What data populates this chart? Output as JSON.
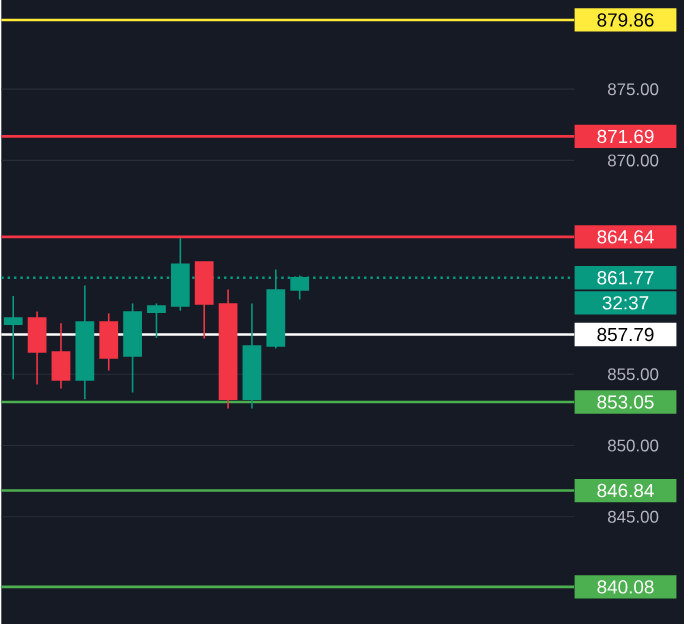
{
  "chart_data": {
    "type": "candlestick",
    "categories": [
      null,
      null,
      null,
      null,
      null,
      null,
      null,
      null,
      null,
      null,
      null,
      null,
      null,
      null,
      null,
      null,
      null,
      null,
      null,
      null,
      null,
      null,
      null,
      null
    ],
    "ohlc": [
      [
        858.52,
        860.49,
        854.65,
        858.95
      ],
      [
        858.95,
        859.41,
        854.28,
        856.56
      ],
      [
        856.56,
        858.57,
        854.0,
        854.6
      ],
      [
        854.6,
        861.23,
        853.25,
        858.67
      ],
      [
        858.67,
        859.27,
        855.26,
        856.15
      ],
      [
        856.29,
        859.97,
        853.72,
        859.36
      ],
      [
        859.36,
        859.97,
        857.55,
        859.79
      ],
      [
        859.79,
        864.55,
        859.46,
        862.72
      ],
      [
        862.87,
        862.87,
        857.5,
        859.93
      ],
      [
        859.93,
        860.95,
        852.6,
        853.25
      ],
      [
        853.25,
        859.97,
        852.6,
        856.98
      ],
      [
        856.98,
        862.35,
        856.8,
        860.91
      ],
      [
        860.91,
        861.93,
        860.25,
        861.77
      ],
      null,
      null,
      null,
      null,
      null,
      null,
      null,
      null,
      null,
      null,
      null
    ],
    "colors": [
      "#089981",
      "#f23645",
      "#f23645",
      "#089981",
      "#f23645",
      "#089981",
      "#089981",
      "#089981",
      "#f23645",
      "#f23645",
      "#089981",
      "#089981",
      "#089981",
      null,
      null,
      null,
      null,
      null,
      null,
      null,
      null,
      null,
      null,
      null
    ],
    "ylim": [
      837.42,
      881.26
    ],
    "yticks": [
      {
        "value": 875,
        "label": "875.00"
      },
      {
        "value": 870,
        "label": "870.00"
      },
      {
        "value": 855,
        "label": "855.00"
      },
      {
        "value": 850,
        "label": "850.00"
      },
      {
        "value": 845,
        "label": "845.00"
      }
    ],
    "grid": "y",
    "tick_labels": "y",
    "ref_lines": [
      {
        "axis": "y",
        "value": 879.86,
        "label": "879.86",
        "color": "#ffeb3b"
      },
      {
        "axis": "y",
        "value": 871.69,
        "label": "871.69",
        "color": "#f23645"
      },
      {
        "axis": "y",
        "value": 864.64,
        "label": "864.64",
        "color": "#f23645"
      },
      {
        "axis": "y",
        "value": 861.77,
        "label": "861.77",
        "color": "#089981",
        "line_style": "dotted"
      },
      {
        "axis": "y",
        "value": 857.79,
        "label": "857.79",
        "color": "#ffffff"
      },
      {
        "axis": "y",
        "value": 853.05,
        "label": "853.05",
        "color": "#4caf50"
      },
      {
        "axis": "y",
        "value": 846.84,
        "label": "846.84",
        "color": "#4caf50"
      },
      {
        "axis": "y",
        "value": 840.08,
        "label": "840.08",
        "color": "#4caf50"
      }
    ],
    "annotations": [
      "32:37"
    ]
  }
}
